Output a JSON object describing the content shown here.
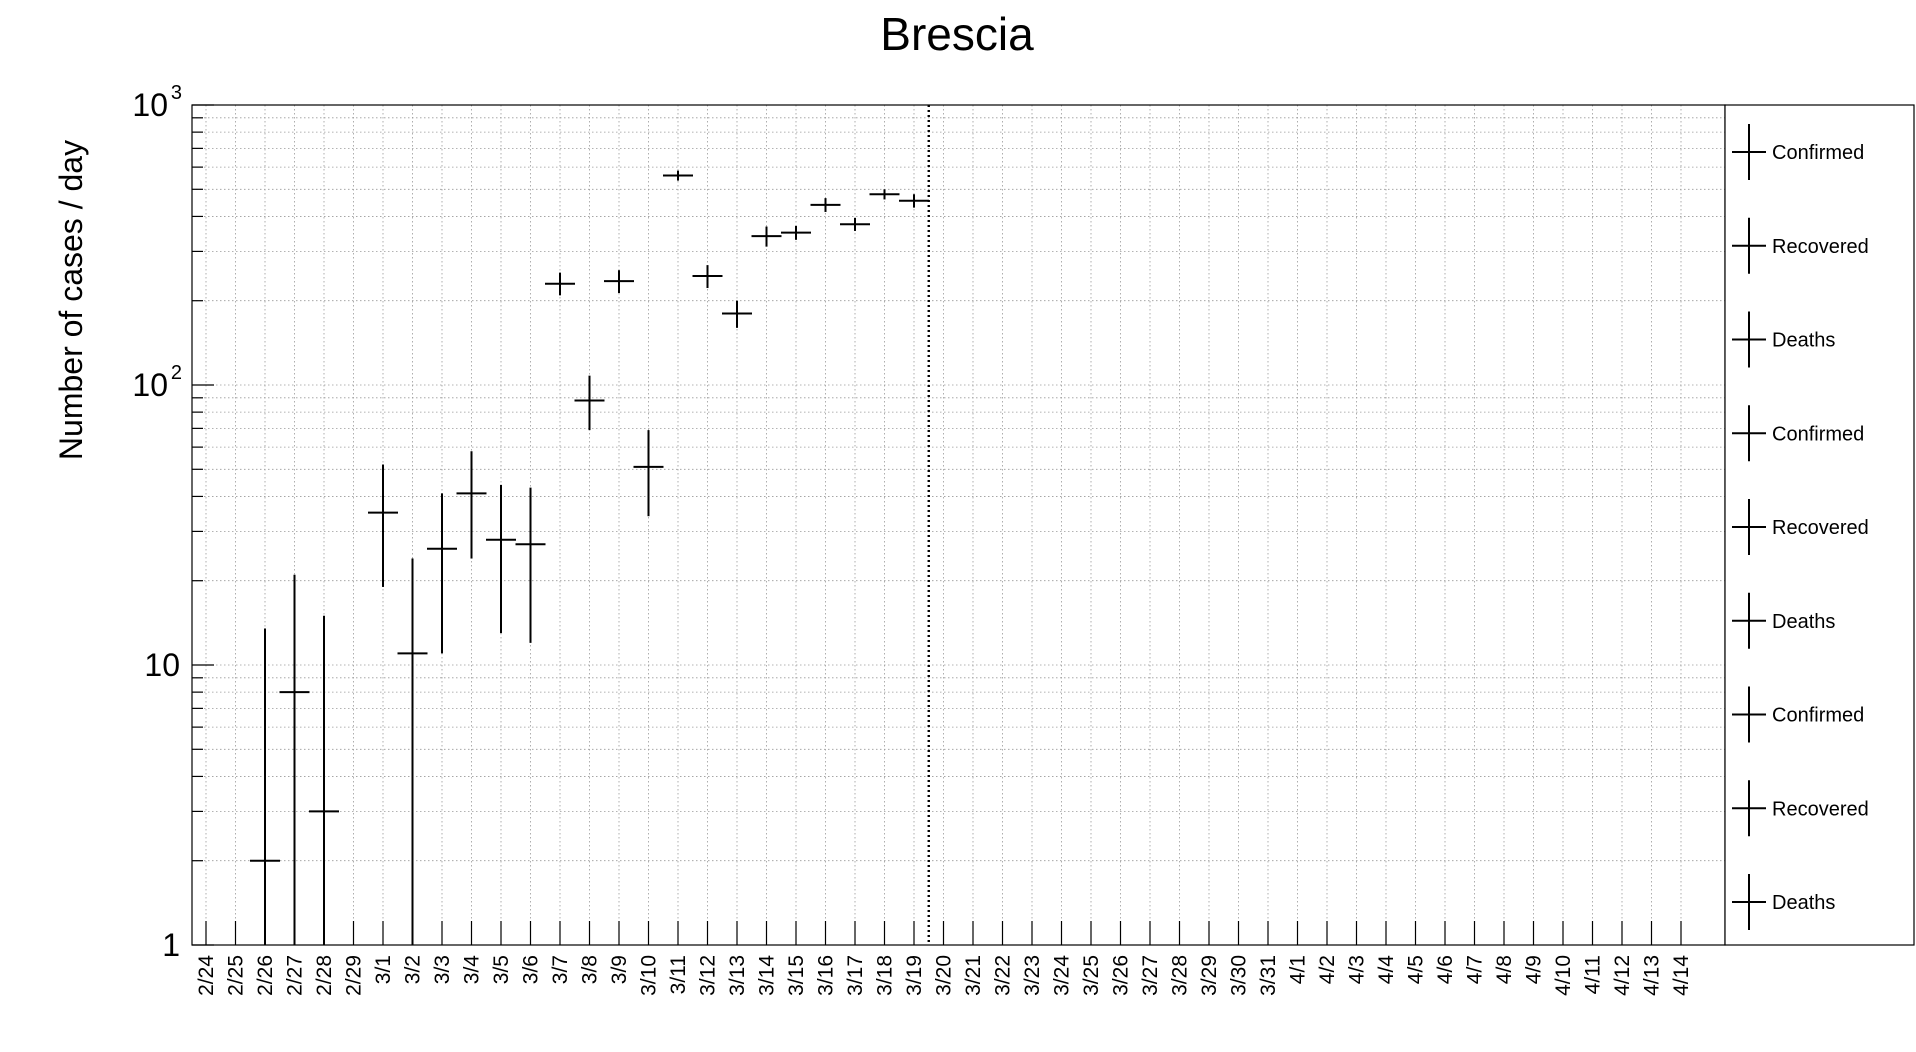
{
  "chart_data": {
    "type": "scatter",
    "title": "Brescia",
    "ylabel": "Number of cases / day",
    "xlabel": "",
    "log_scale_y": true,
    "ylim": [
      1,
      1000
    ],
    "ytick_labels": [
      {
        "value": 1,
        "base": "1",
        "exp": ""
      },
      {
        "value": 10,
        "base": "10",
        "exp": ""
      },
      {
        "value": 100,
        "base": "10",
        "exp": "2"
      },
      {
        "value": 1000,
        "base": "10",
        "exp": "3"
      }
    ],
    "grid": true,
    "error_bars": true,
    "legend_position": "right",
    "categories": [
      "2/24",
      "2/25",
      "2/26",
      "2/27",
      "2/28",
      "2/29",
      "3/1",
      "3/2",
      "3/3",
      "3/4",
      "3/5",
      "3/6",
      "3/7",
      "3/8",
      "3/9",
      "3/10",
      "3/11",
      "3/12",
      "3/13",
      "3/14",
      "3/15",
      "3/16",
      "3/17",
      "3/18",
      "3/19",
      "3/20",
      "3/21",
      "3/22",
      "3/23",
      "3/24",
      "3/25",
      "3/26",
      "3/27",
      "3/28",
      "3/29",
      "3/30",
      "3/31",
      "4/1",
      "4/2",
      "4/3",
      "4/4",
      "4/5",
      "4/6",
      "4/7",
      "4/8",
      "4/9",
      "4/10",
      "4/11",
      "4/12",
      "4/13",
      "4/14"
    ],
    "marker_date": "3/20",
    "series": [
      {
        "name": "Confirmed",
        "color": "#000000",
        "points": [
          {
            "x": "2/26",
            "y": 2,
            "ylo": 1,
            "yhi": 13.5
          },
          {
            "x": "2/27",
            "y": 8,
            "ylo": 1,
            "yhi": 21
          },
          {
            "x": "2/28",
            "y": 3,
            "ylo": 1,
            "yhi": 15
          },
          {
            "x": "3/1",
            "y": 35,
            "ylo": 19,
            "yhi": 52
          },
          {
            "x": "3/2",
            "y": 11,
            "ylo": 1,
            "yhi": 24
          },
          {
            "x": "3/3",
            "y": 26,
            "ylo": 11,
            "yhi": 41
          },
          {
            "x": "3/4",
            "y": 41,
            "ylo": 24,
            "yhi": 58
          },
          {
            "x": "3/5",
            "y": 28,
            "ylo": 13,
            "yhi": 44
          },
          {
            "x": "3/6",
            "y": 27,
            "ylo": 12,
            "yhi": 43
          },
          {
            "x": "3/7",
            "y": 230,
            "ylo": 209,
            "yhi": 252
          },
          {
            "x": "3/8",
            "y": 88,
            "ylo": 69,
            "yhi": 108
          },
          {
            "x": "3/9",
            "y": 235,
            "ylo": 213,
            "yhi": 257
          },
          {
            "x": "3/10",
            "y": 51,
            "ylo": 34,
            "yhi": 69
          },
          {
            "x": "3/11",
            "y": 560,
            "ylo": 537,
            "yhi": 583
          },
          {
            "x": "3/12",
            "y": 245,
            "ylo": 222,
            "yhi": 268
          },
          {
            "x": "3/13",
            "y": 180,
            "ylo": 160,
            "yhi": 200
          },
          {
            "x": "3/14",
            "y": 340,
            "ylo": 312,
            "yhi": 368
          },
          {
            "x": "3/15",
            "y": 350,
            "ylo": 330,
            "yhi": 370
          },
          {
            "x": "3/16",
            "y": 440,
            "ylo": 415,
            "yhi": 465
          },
          {
            "x": "3/17",
            "y": 375,
            "ylo": 355,
            "yhi": 395
          },
          {
            "x": "3/18",
            "y": 480,
            "ylo": 460,
            "yhi": 500
          },
          {
            "x": "3/19",
            "y": 455,
            "ylo": 430,
            "yhi": 480
          }
        ]
      }
    ],
    "legend": [
      {
        "label": "Confirmed"
      },
      {
        "label": "Recovered"
      },
      {
        "label": "Deaths"
      },
      {
        "label": "Confirmed"
      },
      {
        "label": "Recovered"
      },
      {
        "label": "Deaths"
      },
      {
        "label": "Confirmed"
      },
      {
        "label": "Recovered"
      },
      {
        "label": "Deaths"
      }
    ]
  }
}
